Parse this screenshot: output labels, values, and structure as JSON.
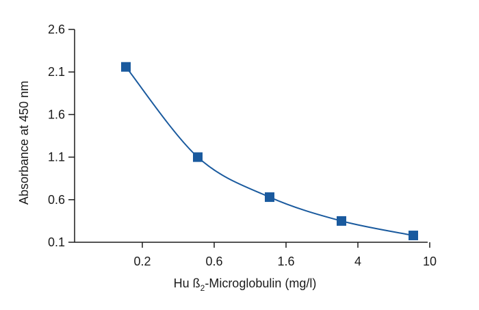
{
  "chart_data": {
    "type": "line",
    "title": "",
    "xlabel_parts": {
      "before": "Hu ß",
      "sub": "2",
      "after": "-Microglobulin (mg/l)"
    },
    "ylabel": "Absorbance at 450 nm",
    "categories": [
      "0.2",
      "0.6",
      "1.6",
      "4",
      "10"
    ],
    "ylim": [
      0.1,
      2.6
    ],
    "yticks": [
      "0.1",
      "0.6",
      "1.1",
      "1.6",
      "2.1",
      "2.6"
    ],
    "grid": false,
    "series": [
      {
        "values": [
          2.16,
          1.1,
          0.63,
          0.35,
          0.18
        ],
        "color": "#1a5a9e",
        "marker": "square"
      }
    ]
  }
}
